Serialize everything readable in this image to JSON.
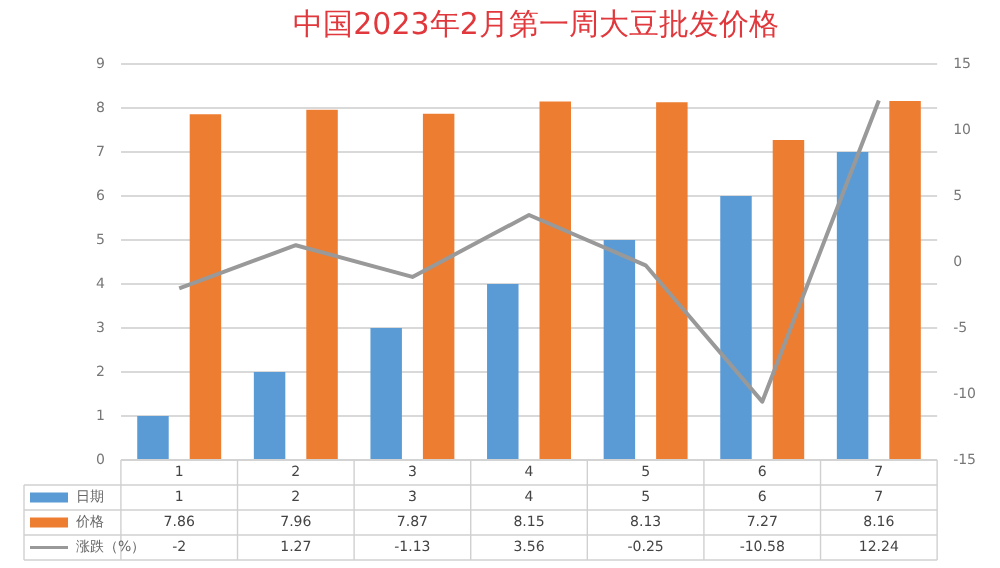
{
  "chart_data": {
    "type": "bar",
    "title": "中国2023年2月第一周大豆批发价格",
    "categories": [
      "1",
      "2",
      "3",
      "4",
      "5",
      "6",
      "7"
    ],
    "series": [
      {
        "name": "日期",
        "color": "#5b9bd5",
        "values": [
          1,
          2,
          3,
          4,
          5,
          6,
          7
        ]
      },
      {
        "name": "价格",
        "color": "#ed7d31",
        "values": [
          7.86,
          7.96,
          7.87,
          8.15,
          8.13,
          7.27,
          8.16
        ]
      },
      {
        "name": "涨跌（%）",
        "type": "line",
        "axis": "y2",
        "color": "#999999",
        "values": [
          -2,
          1.27,
          -1.13,
          3.56,
          -0.25,
          -10.58,
          12.24
        ]
      }
    ],
    "ylim": [
      0,
      9
    ],
    "yticks": [
      0,
      1,
      2,
      3,
      4,
      5,
      6,
      7,
      8,
      9
    ],
    "y2lim": [
      -15,
      15
    ],
    "y2ticks": [
      -15,
      -10,
      -5,
      0,
      5,
      10,
      15
    ],
    "grid": "y",
    "legend": "bottom",
    "data_labels": true,
    "marker": "none"
  }
}
